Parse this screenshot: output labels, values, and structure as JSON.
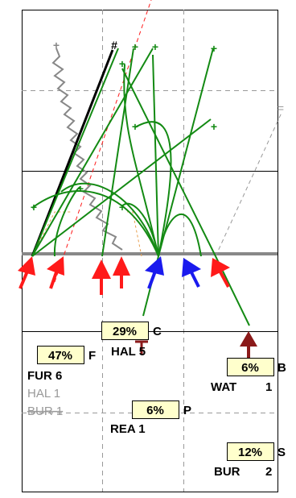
{
  "colors": {
    "frame": "#000000",
    "grid": "#999999",
    "green": "#138a13",
    "red": "#ff1a1a",
    "blue": "#1a1aee",
    "darkred": "#8b1a1a",
    "box_fill": "#ffffcc",
    "gray_text": "#999999"
  },
  "markers": {
    "hash": "#",
    "equals": "=",
    "plus": "+"
  },
  "nodes": [
    {
      "id": "C",
      "percent": "29%",
      "letter": "C",
      "labels": [
        {
          "text": "HAL 5",
          "style": "black"
        }
      ]
    },
    {
      "id": "F",
      "percent": "47%",
      "letter": "F",
      "labels": [
        {
          "text": "FUR 6",
          "style": "black"
        },
        {
          "text": "HAL 1",
          "style": "gray"
        },
        {
          "text": "BUR 1",
          "style": "gray-strike"
        }
      ]
    },
    {
      "id": "B",
      "percent": "6%",
      "letter": "B",
      "labels": [
        {
          "text": "WAT",
          "style": "black"
        },
        {
          "text": "1",
          "style": "black"
        }
      ]
    },
    {
      "id": "P",
      "percent": "6%",
      "letter": "P",
      "labels": [
        {
          "text": "REA 1",
          "style": "black"
        }
      ]
    },
    {
      "id": "S",
      "percent": "12%",
      "letter": "S",
      "labels": [
        {
          "text": "BUR",
          "style": "black"
        },
        {
          "text": "2",
          "style": "black"
        }
      ]
    }
  ]
}
